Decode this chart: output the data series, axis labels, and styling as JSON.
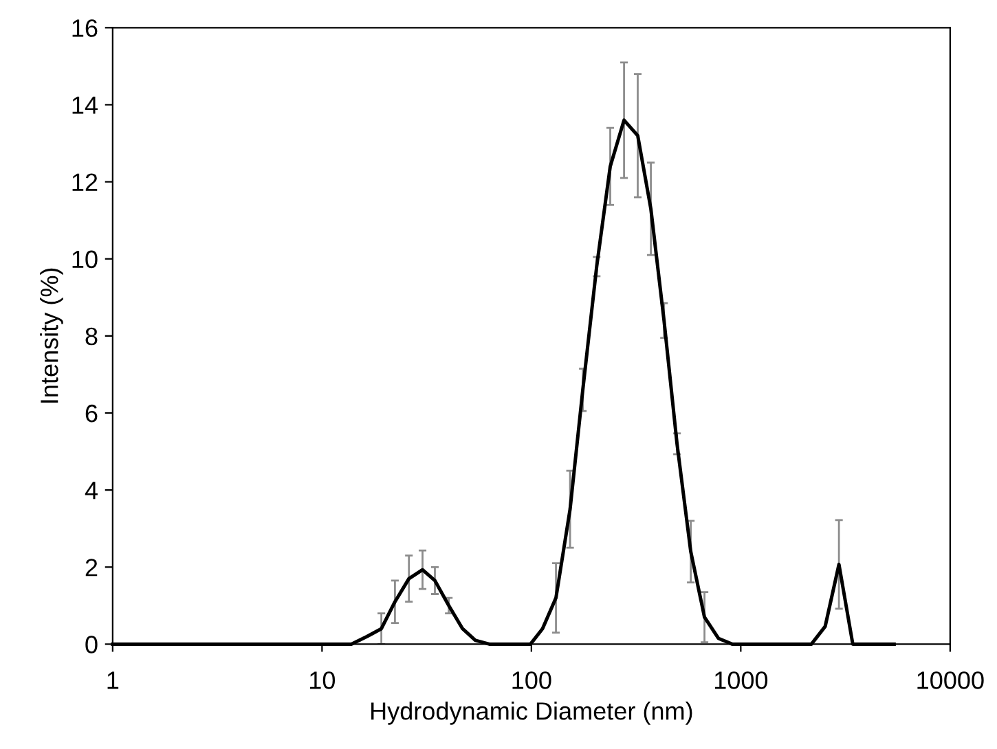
{
  "chart_data": {
    "type": "line",
    "xlabel": "Hydrodynamic Diameter (nm)",
    "ylabel": "Intensity (%)",
    "log": "x",
    "xlim": [
      1,
      10000
    ],
    "xticks": [
      1,
      10,
      100,
      1000,
      10000
    ],
    "ylim": [
      0,
      16
    ],
    "yticks": [
      0,
      2,
      4,
      6,
      8,
      10,
      12,
      14,
      16
    ],
    "grid": false,
    "legend": false,
    "marker": "none",
    "line_style": "solid",
    "series": [
      {
        "color": "#000000",
        "x": [
          1.0,
          1.17,
          1.36,
          1.59,
          1.86,
          2.17,
          2.53,
          2.95,
          3.44,
          4.01,
          4.68,
          5.46,
          6.37,
          7.43,
          8.67,
          10.1,
          11.8,
          13.8,
          16.4,
          19.2,
          22.3,
          26,
          30.2,
          34.6,
          40.3,
          46.9,
          54,
          63,
          73,
          85,
          99,
          113,
          131,
          153,
          176,
          205,
          238,
          277,
          322,
          372,
          430,
          496,
          577,
          671,
          782,
          910,
          1060,
          1240,
          1440,
          1680,
          1950,
          2175,
          2530,
          2944,
          3428,
          4000,
          4650,
          5400
        ],
        "values": [
          0,
          0,
          0,
          0,
          0,
          0,
          0,
          0,
          0,
          0,
          0,
          0,
          0,
          0,
          0,
          0,
          0,
          0,
          0.2,
          0.4,
          1.1,
          1.7,
          1.93,
          1.65,
          1.0,
          0.4,
          0.1,
          0,
          0,
          0,
          0,
          0.4,
          1.2,
          3.5,
          6.6,
          9.8,
          12.4,
          13.6,
          13.2,
          11.3,
          8.4,
          5.2,
          2.4,
          0.7,
          0.15,
          0,
          0,
          0,
          0,
          0,
          0,
          0,
          0.46,
          2.07,
          0,
          0,
          0,
          0
        ],
        "errors": [
          null,
          null,
          null,
          null,
          null,
          null,
          null,
          null,
          null,
          null,
          null,
          null,
          null,
          null,
          null,
          null,
          null,
          null,
          null,
          0.4,
          0.55,
          0.6,
          0.5,
          0.35,
          0.2,
          null,
          null,
          null,
          null,
          null,
          null,
          null,
          0.9,
          1.0,
          0.55,
          0.25,
          1.0,
          1.5,
          1.6,
          1.2,
          0.45,
          0.27,
          0.8,
          0.65,
          null,
          null,
          null,
          null,
          null,
          null,
          null,
          null,
          null,
          1.15,
          null,
          null,
          null,
          null
        ]
      }
    ]
  }
}
